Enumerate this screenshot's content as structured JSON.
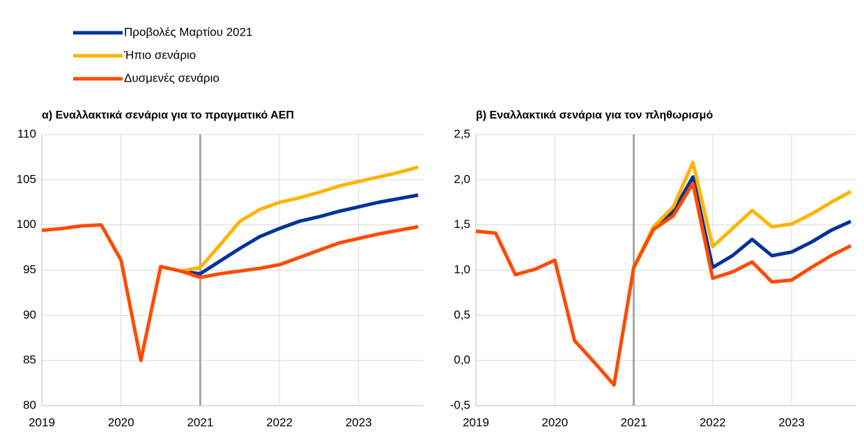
{
  "chart_data": [
    {
      "type": "line",
      "title": "α) Εναλλακτικά σενάρια για το πραγματικό ΑΕΠ",
      "x": [
        2019,
        2019.25,
        2019.5,
        2019.75,
        2020,
        2020.25,
        2020.5,
        2020.75,
        2021,
        2021.25,
        2021.5,
        2021.75,
        2022,
        2022.25,
        2022.5,
        2022.75,
        2023,
        2023.25,
        2023.5,
        2023.75
      ],
      "xlim": [
        2019,
        2023.82
      ],
      "xticks": [
        2019,
        2020,
        2021,
        2022,
        2023
      ],
      "ylim": [
        80,
        110
      ],
      "yticks": [
        80,
        85,
        90,
        95,
        100,
        105,
        110
      ],
      "grid": true,
      "vline": 2021,
      "series": [
        {
          "name": "Προβολές Μαρτίου 2021",
          "color": "#003299",
          "values": [
            null,
            null,
            null,
            null,
            null,
            null,
            null,
            94.9,
            94.6,
            96.0,
            97.4,
            98.7,
            99.6,
            100.4,
            100.9,
            101.5,
            102.0,
            102.5,
            102.9,
            103.3
          ]
        },
        {
          "name": "Ήπιο σενάριο",
          "color": "#ffb400",
          "values": [
            null,
            null,
            null,
            null,
            null,
            null,
            null,
            94.9,
            95.3,
            97.8,
            100.4,
            101.7,
            102.5,
            103.0,
            103.6,
            104.3,
            104.8,
            105.3,
            105.8,
            106.4
          ]
        },
        {
          "name": "Δυσμενές σενάριο",
          "color": "#ff4b00",
          "values": [
            99.4,
            99.6,
            99.9,
            100.0,
            96.1,
            85.0,
            95.4,
            94.9,
            94.2,
            94.6,
            94.9,
            95.2,
            95.6,
            96.4,
            97.2,
            98.0,
            98.5,
            99.0,
            99.4,
            99.8
          ]
        }
      ]
    },
    {
      "type": "line",
      "title": "β) Εναλλακτικά σενάρια για τον πληθωρισμό",
      "x": [
        2019,
        2019.25,
        2019.5,
        2019.75,
        2020,
        2020.25,
        2020.5,
        2020.75,
        2021,
        2021.25,
        2021.5,
        2021.75,
        2022,
        2022.25,
        2022.5,
        2022.75,
        2023,
        2023.25,
        2023.5,
        2023.75
      ],
      "xlim": [
        2019,
        2023.82
      ],
      "xticks": [
        2019,
        2020,
        2021,
        2022,
        2023
      ],
      "ylim": [
        -0.5,
        2.5
      ],
      "yticks": [
        {
          "value": -0.5,
          "label": "-0,5"
        },
        {
          "value": 0,
          "label": "0,0"
        },
        {
          "value": 0.5,
          "label": "0,5"
        },
        {
          "value": 1,
          "label": "1,0"
        },
        {
          "value": 1.5,
          "label": "1,5"
        },
        {
          "value": 2,
          "label": "2,0"
        },
        {
          "value": 2.5,
          "label": "2,5"
        }
      ],
      "grid": true,
      "vline": 2021,
      "series": [
        {
          "color": "#003299",
          "values": [
            null,
            null,
            null,
            null,
            null,
            null,
            null,
            null,
            1.03,
            1.46,
            1.65,
            2.03,
            1.03,
            1.16,
            1.34,
            1.16,
            1.2,
            1.31,
            1.44,
            1.54
          ]
        },
        {
          "color": "#ffb400",
          "values": [
            null,
            null,
            null,
            null,
            null,
            null,
            null,
            null,
            1.03,
            1.48,
            1.7,
            2.19,
            1.26,
            1.46,
            1.66,
            1.48,
            1.51,
            1.62,
            1.75,
            1.87
          ]
        },
        {
          "color": "#ff4b00",
          "values": [
            1.43,
            1.41,
            0.95,
            1.01,
            1.11,
            0.22,
            -0.02,
            -0.27,
            1.03,
            1.45,
            1.6,
            1.96,
            0.91,
            0.98,
            1.09,
            0.87,
            0.89,
            1.03,
            1.16,
            1.27
          ]
        }
      ]
    }
  ]
}
